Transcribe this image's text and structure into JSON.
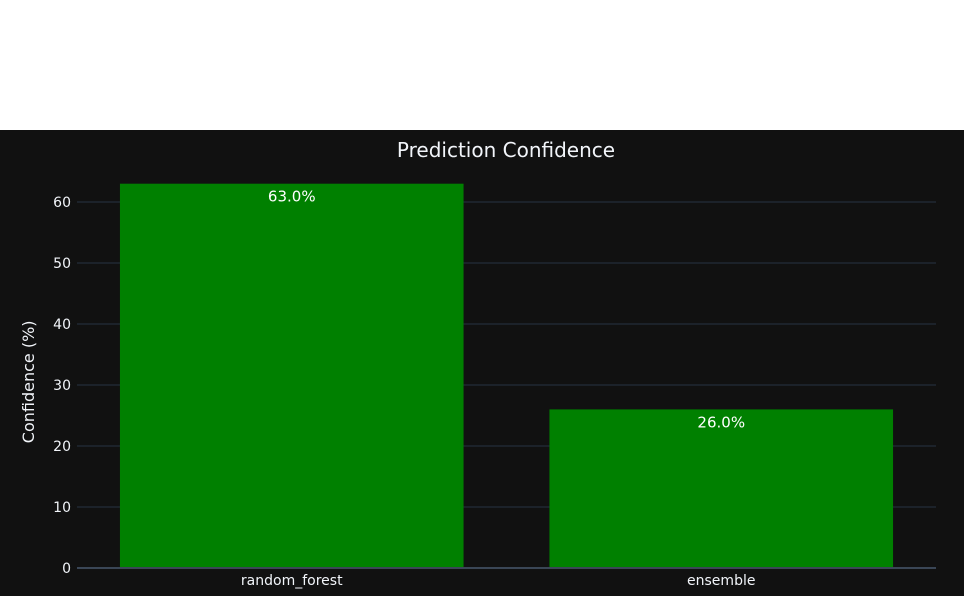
{
  "chart_data": {
    "type": "bar",
    "title": "Prediction Confidence",
    "xlabel": "",
    "ylabel": "Confidence (%)",
    "categories": [
      "random_forest",
      "ensemble"
    ],
    "values": [
      63.0,
      26.0
    ],
    "data_labels": [
      "63.0%",
      "26.0%"
    ],
    "ylim": [
      0,
      63
    ],
    "yticks": [
      0,
      10,
      20,
      30,
      40,
      50,
      60
    ],
    "grid": true,
    "legend": "none",
    "colors": {
      "bar": "#008000",
      "background": "#111111",
      "grid": "#283442",
      "text": "#f2f5fa"
    }
  }
}
